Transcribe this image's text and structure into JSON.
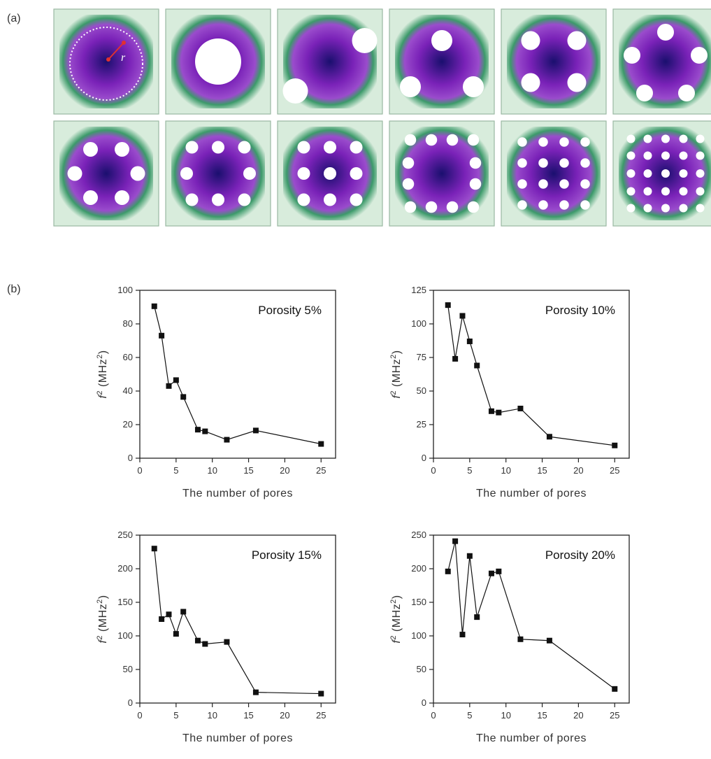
{
  "labels": {
    "panel_a": "(a)",
    "panel_b": "(b)"
  },
  "tiles": {
    "radius_symbol": "r",
    "colors": {
      "background": "#d8ecdc",
      "rim": "#3c9a6a",
      "core": "#1a0f6e",
      "mid": "#7a22b8",
      "pore": "#ffffff"
    },
    "pore_counts_row1": [
      0,
      1,
      2,
      3,
      4,
      5
    ],
    "pore_counts_row2": [
      6,
      8,
      9,
      12,
      16,
      25
    ]
  },
  "chart_data": [
    {
      "type": "line",
      "title": "Porosity 5%",
      "xlabel": "The number of pores",
      "ylabel_main": "f",
      "ylabel_sup": "2",
      "ylabel_unit": "(MHz",
      "ylabel_unit_sup": "2",
      "ylabel_close": ")",
      "xlim": [
        0,
        27
      ],
      "ylim": [
        0,
        100
      ],
      "xticks": [
        0,
        5,
        10,
        15,
        20,
        25
      ],
      "yticks": [
        0,
        20,
        40,
        60,
        80,
        100
      ],
      "x": [
        2,
        3,
        4,
        5,
        6,
        8,
        9,
        12,
        16,
        25
      ],
      "y": [
        90.5,
        73,
        43,
        46.5,
        36.5,
        17,
        16,
        11,
        16.5,
        8.5
      ]
    },
    {
      "type": "line",
      "title": "Porosity 10%",
      "xlabel": "The number of pores",
      "ylabel_main": "f",
      "ylabel_sup": "2",
      "ylabel_unit": "(MHz",
      "ylabel_unit_sup": "2",
      "ylabel_close": ")",
      "xlim": [
        0,
        27
      ],
      "ylim": [
        0,
        125
      ],
      "xticks": [
        0,
        5,
        10,
        15,
        20,
        25
      ],
      "yticks": [
        0,
        25,
        50,
        75,
        100,
        125
      ],
      "x": [
        2,
        3,
        4,
        5,
        6,
        8,
        9,
        12,
        16,
        25
      ],
      "y": [
        114,
        74,
        106,
        87,
        69,
        35,
        34,
        37,
        16,
        9.5
      ]
    },
    {
      "type": "line",
      "title": "Porosity 15%",
      "xlabel": "The number of pores",
      "ylabel_main": "f",
      "ylabel_sup": "2",
      "ylabel_unit": "(MHz",
      "ylabel_unit_sup": "2",
      "ylabel_close": ")",
      "xlim": [
        0,
        27
      ],
      "ylim": [
        0,
        250
      ],
      "xticks": [
        0,
        5,
        10,
        15,
        20,
        25
      ],
      "yticks": [
        0,
        50,
        100,
        150,
        200,
        250
      ],
      "x": [
        2,
        3,
        4,
        5,
        6,
        8,
        9,
        12,
        16,
        25
      ],
      "y": [
        230,
        125,
        132,
        103,
        136,
        93,
        88,
        91,
        16,
        14
      ]
    },
    {
      "type": "line",
      "title": "Porosity 20%",
      "xlabel": "The number of pores",
      "ylabel_main": "f",
      "ylabel_sup": "2",
      "ylabel_unit": "(MHz",
      "ylabel_unit_sup": "2",
      "ylabel_close": ")",
      "xlim": [
        0,
        27
      ],
      "ylim": [
        0,
        250
      ],
      "xticks": [
        0,
        5,
        10,
        15,
        20,
        25
      ],
      "yticks": [
        0,
        50,
        100,
        150,
        200,
        250
      ],
      "x": [
        2,
        3,
        4,
        5,
        6,
        8,
        9,
        12,
        16,
        25
      ],
      "y": [
        196,
        241,
        102,
        219,
        128,
        193,
        196,
        95,
        93,
        21
      ]
    }
  ]
}
